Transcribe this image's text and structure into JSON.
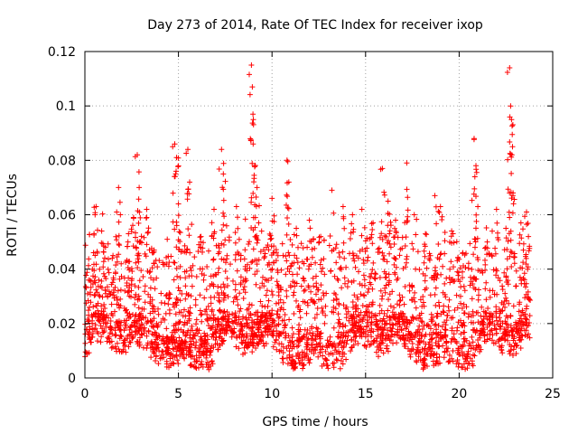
{
  "chart_data": {
    "type": "scatter",
    "title": "Day 273 of 2014, Rate Of TEC Index for receiver ixop",
    "xlabel": "GPS time / hours",
    "ylabel": "ROTI / TECUs",
    "xlim": [
      0,
      25
    ],
    "ylim": [
      0,
      0.12
    ],
    "xticks": [
      0,
      5,
      10,
      15,
      20,
      25
    ],
    "xtick_labels": [
      "0",
      "5",
      "10",
      "15",
      "20",
      "25"
    ],
    "yticks": [
      0,
      0.02,
      0.04,
      0.06,
      0.08,
      0.1,
      0.12
    ],
    "ytick_labels": [
      "0",
      "0.02",
      "0.04",
      "0.06",
      "0.08",
      "0.1",
      "0.12"
    ],
    "grid": true,
    "marker": "+",
    "color": "#ff0000",
    "series": [
      {
        "name": "ROTI",
        "description_points": [
          [
            0.2,
            0.036
          ],
          [
            0.4,
            0.04
          ],
          [
            0.6,
            0.063
          ],
          [
            0.9,
            0.054
          ],
          [
            1.1,
            0.048
          ],
          [
            1.5,
            0.045
          ],
          [
            1.7,
            0.061
          ],
          [
            1.8,
            0.07
          ],
          [
            2.3,
            0.05
          ],
          [
            2.6,
            0.059
          ],
          [
            2.8,
            0.082
          ],
          [
            2.9,
            0.07
          ],
          [
            3.3,
            0.062
          ],
          [
            3.7,
            0.047
          ],
          [
            4.4,
            0.051
          ],
          [
            4.8,
            0.086
          ],
          [
            4.9,
            0.081
          ],
          [
            5.0,
            0.064
          ],
          [
            5.5,
            0.084
          ],
          [
            5.6,
            0.072
          ],
          [
            6.2,
            0.052
          ],
          [
            6.9,
            0.062
          ],
          [
            7.3,
            0.084
          ],
          [
            7.4,
            0.075
          ],
          [
            8.1,
            0.063
          ],
          [
            8.9,
            0.115
          ],
          [
            8.95,
            0.107
          ],
          [
            9.0,
            0.095
          ],
          [
            9.1,
            0.078
          ],
          [
            9.2,
            0.07
          ],
          [
            9.7,
            0.048
          ],
          [
            10.0,
            0.066
          ],
          [
            10.8,
            0.08
          ],
          [
            10.9,
            0.072
          ],
          [
            11.3,
            0.055
          ],
          [
            12.0,
            0.058
          ],
          [
            12.6,
            0.052
          ],
          [
            13.2,
            0.069
          ],
          [
            13.8,
            0.063
          ],
          [
            14.3,
            0.06
          ],
          [
            14.8,
            0.062
          ],
          [
            15.4,
            0.057
          ],
          [
            15.9,
            0.077
          ],
          [
            16.2,
            0.065
          ],
          [
            16.6,
            0.058
          ],
          [
            17.2,
            0.079
          ],
          [
            17.6,
            0.06
          ],
          [
            18.2,
            0.053
          ],
          [
            18.7,
            0.067
          ],
          [
            19.0,
            0.063
          ],
          [
            19.6,
            0.054
          ],
          [
            20.2,
            0.046
          ],
          [
            20.8,
            0.088
          ],
          [
            20.9,
            0.078
          ],
          [
            21.0,
            0.063
          ],
          [
            21.5,
            0.05
          ],
          [
            22.0,
            0.062
          ],
          [
            22.5,
            0.055
          ],
          [
            22.7,
            0.114
          ],
          [
            22.75,
            0.1
          ],
          [
            22.8,
            0.095
          ],
          [
            22.85,
            0.085
          ],
          [
            23.3,
            0.057
          ],
          [
            23.6,
            0.061
          ],
          [
            23.7,
            0.052
          ]
        ]
      }
    ]
  }
}
